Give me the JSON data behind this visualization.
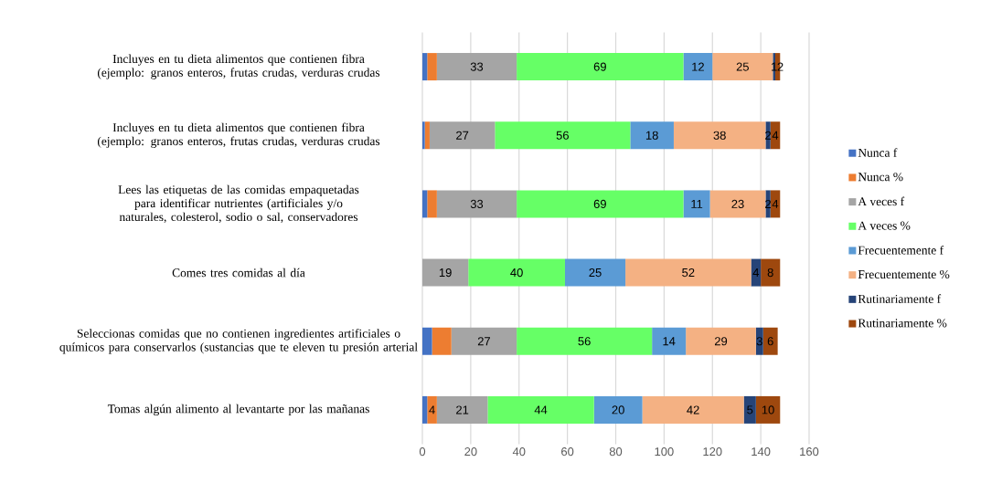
{
  "chart_data": {
    "type": "bar",
    "orientation": "horizontal",
    "stacked": true,
    "categories": [
      "Incluyes en tu dieta alimentos que contienen fibra (ejemplo: granos enteros, frutas crudas, verduras crudas",
      "Incluyes en tu dieta alimentos que contienen fibra (ejemplo: granos enteros, frutas crudas, verduras crudas",
      "Lees las etiquetas de las comidas empaquetadas para identificar nutrientes (artificiales y/o naturales, colesterol, sodio o sal, conservadores",
      "Comes tres comidas al día",
      "Seleccionas comidas que no contienen ingredientes artificiales o químicos para conservarlos (sustancias que te eleven tu presión arterial",
      "Tomas algún alimento al levantarte por las mañanas"
    ],
    "series": [
      {
        "name": "Nunca f",
        "color": "#4472c4",
        "values": [
          2,
          1,
          2,
          0,
          4,
          2
        ],
        "value_labels": [
          null,
          null,
          null,
          null,
          null,
          null
        ]
      },
      {
        "name": "Nunca %",
        "color": "#ed7d31",
        "values": [
          4,
          2,
          4,
          0,
          8,
          4
        ],
        "value_labels": [
          null,
          null,
          null,
          null,
          null,
          "4"
        ]
      },
      {
        "name": "A veces f",
        "color": "#a5a5a5",
        "values": [
          33,
          27,
          33,
          19,
          27,
          21
        ],
        "value_labels": [
          "33",
          "27",
          "33",
          "19",
          "27",
          "21"
        ]
      },
      {
        "name": "A veces %",
        "color": "#66ff66",
        "values": [
          69,
          56,
          69,
          40,
          56,
          44
        ],
        "value_labels": [
          "69",
          "56",
          "69",
          "40",
          "56",
          "44"
        ]
      },
      {
        "name": "Frecuentemente f",
        "color": "#5b9bd5",
        "values": [
          12,
          18,
          11,
          25,
          14,
          20
        ],
        "value_labels": [
          "12",
          "18",
          "11",
          "25",
          "14",
          "20"
        ]
      },
      {
        "name": "Frecuentemente %",
        "color": "#f4b183",
        "values": [
          25,
          38,
          23,
          52,
          29,
          42
        ],
        "value_labels": [
          "25",
          "38",
          "23",
          "52",
          "29",
          "42"
        ]
      },
      {
        "name": "Rutinariamente f",
        "color": "#264478",
        "values": [
          1,
          2,
          2,
          4,
          3,
          5
        ],
        "value_labels": [
          "1",
          "2",
          "2",
          "4",
          "3",
          "5"
        ]
      },
      {
        "name": "Rutinariamente %",
        "color": "#9e480e",
        "values": [
          2,
          4,
          4,
          8,
          6,
          10
        ],
        "value_labels": [
          "2",
          "4",
          "4",
          "8",
          "6",
          "10"
        ]
      }
    ],
    "xlim": [
      0,
      160
    ],
    "xticks": [
      0,
      20,
      40,
      60,
      80,
      100,
      120,
      140,
      160
    ],
    "grid": "x",
    "legend": "right"
  }
}
